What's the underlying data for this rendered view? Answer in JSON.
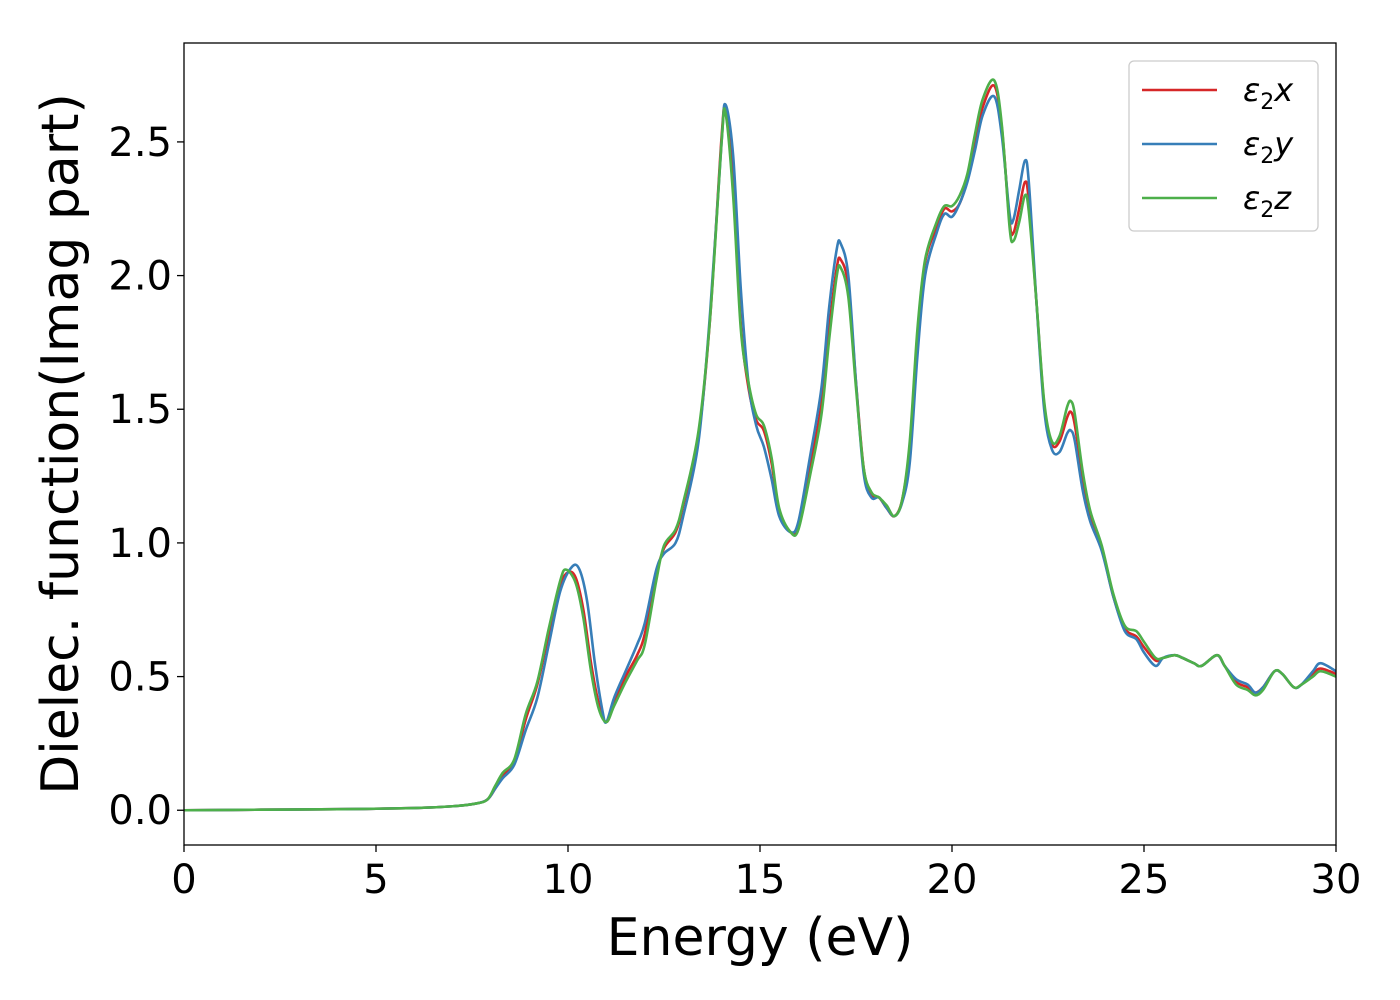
{
  "chart_data": {
    "type": "line",
    "xlabel": "Energy (eV)",
    "ylabel": "Dielec. function(Imag part)",
    "xlim": [
      0,
      30
    ],
    "ylim": [
      -0.13,
      2.87
    ],
    "xticks": [
      "0",
      "5",
      "10",
      "15",
      "20",
      "25",
      "30"
    ],
    "yticks": [
      "0.0",
      "0.5",
      "1.0",
      "1.5",
      "2.0",
      "2.5"
    ],
    "grid": false,
    "legend_position": "top-right",
    "series": [
      {
        "name": "ε2x",
        "legend": {
          "base": "ε",
          "sub": "2",
          "tail": "x"
        },
        "color": "#d62728",
        "points": [
          [
            0,
            0
          ],
          [
            2,
            0.002
          ],
          [
            4,
            0.004
          ],
          [
            6,
            0.008
          ],
          [
            7,
            0.015
          ],
          [
            7.6,
            0.025
          ],
          [
            7.9,
            0.04
          ],
          [
            8.1,
            0.08
          ],
          [
            8.3,
            0.13
          ],
          [
            8.6,
            0.18
          ],
          [
            8.9,
            0.34
          ],
          [
            9.2,
            0.47
          ],
          [
            9.5,
            0.66
          ],
          [
            9.8,
            0.84
          ],
          [
            10.0,
            0.89
          ],
          [
            10.2,
            0.87
          ],
          [
            10.4,
            0.75
          ],
          [
            10.6,
            0.55
          ],
          [
            10.8,
            0.4
          ],
          [
            11.0,
            0.33
          ],
          [
            11.2,
            0.4
          ],
          [
            11.5,
            0.5
          ],
          [
            11.8,
            0.58
          ],
          [
            12.0,
            0.66
          ],
          [
            12.3,
            0.88
          ],
          [
            12.5,
            0.98
          ],
          [
            12.8,
            1.04
          ],
          [
            13.0,
            1.14
          ],
          [
            13.4,
            1.4
          ],
          [
            13.7,
            1.84
          ],
          [
            14.0,
            2.52
          ],
          [
            14.1,
            2.61
          ],
          [
            14.3,
            2.35
          ],
          [
            14.5,
            1.82
          ],
          [
            14.7,
            1.58
          ],
          [
            14.9,
            1.46
          ],
          [
            15.1,
            1.42
          ],
          [
            15.3,
            1.3
          ],
          [
            15.5,
            1.12
          ],
          [
            15.8,
            1.04
          ],
          [
            16.0,
            1.06
          ],
          [
            16.3,
            1.28
          ],
          [
            16.6,
            1.52
          ],
          [
            16.8,
            1.8
          ],
          [
            17.0,
            2.03
          ],
          [
            17.1,
            2.06
          ],
          [
            17.3,
            1.96
          ],
          [
            17.5,
            1.6
          ],
          [
            17.7,
            1.28
          ],
          [
            17.9,
            1.18
          ],
          [
            18.1,
            1.17
          ],
          [
            18.3,
            1.13
          ],
          [
            18.5,
            1.1
          ],
          [
            18.7,
            1.16
          ],
          [
            18.9,
            1.36
          ],
          [
            19.1,
            1.78
          ],
          [
            19.3,
            2.05
          ],
          [
            19.6,
            2.18
          ],
          [
            19.8,
            2.25
          ],
          [
            20.0,
            2.24
          ],
          [
            20.2,
            2.27
          ],
          [
            20.4,
            2.36
          ],
          [
            20.6,
            2.5
          ],
          [
            20.8,
            2.63
          ],
          [
            21.1,
            2.71
          ],
          [
            21.3,
            2.55
          ],
          [
            21.5,
            2.2
          ],
          [
            21.6,
            2.16
          ],
          [
            21.75,
            2.25
          ],
          [
            21.9,
            2.35
          ],
          [
            22.0,
            2.28
          ],
          [
            22.2,
            1.9
          ],
          [
            22.4,
            1.52
          ],
          [
            22.6,
            1.37
          ],
          [
            22.8,
            1.38
          ],
          [
            23.0,
            1.47
          ],
          [
            23.1,
            1.49
          ],
          [
            23.2,
            1.44
          ],
          [
            23.4,
            1.25
          ],
          [
            23.6,
            1.1
          ],
          [
            23.9,
            0.98
          ],
          [
            24.2,
            0.8
          ],
          [
            24.5,
            0.68
          ],
          [
            24.8,
            0.65
          ],
          [
            25.0,
            0.61
          ],
          [
            25.3,
            0.56
          ],
          [
            25.5,
            0.57
          ],
          [
            25.8,
            0.58
          ],
          [
            26.0,
            0.57
          ],
          [
            26.3,
            0.55
          ],
          [
            26.5,
            0.54
          ],
          [
            26.9,
            0.58
          ],
          [
            27.1,
            0.54
          ],
          [
            27.4,
            0.48
          ],
          [
            27.7,
            0.46
          ],
          [
            27.9,
            0.44
          ],
          [
            28.1,
            0.46
          ],
          [
            28.4,
            0.52
          ],
          [
            28.6,
            0.51
          ],
          [
            28.9,
            0.46
          ],
          [
            29.1,
            0.47
          ],
          [
            29.4,
            0.51
          ],
          [
            29.6,
            0.53
          ],
          [
            30.0,
            0.51
          ]
        ]
      },
      {
        "name": "ε2y",
        "legend": {
          "base": "ε",
          "sub": "2",
          "tail": "y"
        },
        "color": "#377eb8",
        "points": [
          [
            0,
            0
          ],
          [
            2,
            0.002
          ],
          [
            4,
            0.004
          ],
          [
            6,
            0.008
          ],
          [
            7,
            0.015
          ],
          [
            7.6,
            0.025
          ],
          [
            7.9,
            0.04
          ],
          [
            8.1,
            0.08
          ],
          [
            8.3,
            0.12
          ],
          [
            8.6,
            0.17
          ],
          [
            8.9,
            0.3
          ],
          [
            9.2,
            0.42
          ],
          [
            9.5,
            0.62
          ],
          [
            9.8,
            0.82
          ],
          [
            10.1,
            0.91
          ],
          [
            10.3,
            0.9
          ],
          [
            10.5,
            0.78
          ],
          [
            10.7,
            0.55
          ],
          [
            10.9,
            0.37
          ],
          [
            11.0,
            0.33
          ],
          [
            11.2,
            0.42
          ],
          [
            11.5,
            0.52
          ],
          [
            11.8,
            0.62
          ],
          [
            12.0,
            0.7
          ],
          [
            12.3,
            0.9
          ],
          [
            12.5,
            0.96
          ],
          [
            12.8,
            1.0
          ],
          [
            13.0,
            1.1
          ],
          [
            13.4,
            1.38
          ],
          [
            13.7,
            1.86
          ],
          [
            14.0,
            2.5
          ],
          [
            14.1,
            2.64
          ],
          [
            14.3,
            2.45
          ],
          [
            14.5,
            1.95
          ],
          [
            14.7,
            1.6
          ],
          [
            14.9,
            1.44
          ],
          [
            15.1,
            1.36
          ],
          [
            15.3,
            1.24
          ],
          [
            15.5,
            1.1
          ],
          [
            15.8,
            1.04
          ],
          [
            16.0,
            1.08
          ],
          [
            16.3,
            1.32
          ],
          [
            16.6,
            1.58
          ],
          [
            16.8,
            1.88
          ],
          [
            17.0,
            2.1
          ],
          [
            17.1,
            2.12
          ],
          [
            17.3,
            2.0
          ],
          [
            17.5,
            1.6
          ],
          [
            17.7,
            1.26
          ],
          [
            17.9,
            1.17
          ],
          [
            18.1,
            1.17
          ],
          [
            18.3,
            1.13
          ],
          [
            18.5,
            1.1
          ],
          [
            18.7,
            1.15
          ],
          [
            18.9,
            1.3
          ],
          [
            19.1,
            1.7
          ],
          [
            19.3,
            2.0
          ],
          [
            19.6,
            2.16
          ],
          [
            19.8,
            2.23
          ],
          [
            20.0,
            2.22
          ],
          [
            20.2,
            2.27
          ],
          [
            20.4,
            2.35
          ],
          [
            20.6,
            2.47
          ],
          [
            20.8,
            2.6
          ],
          [
            21.1,
            2.67
          ],
          [
            21.3,
            2.52
          ],
          [
            21.5,
            2.23
          ],
          [
            21.6,
            2.21
          ],
          [
            21.75,
            2.32
          ],
          [
            21.9,
            2.43
          ],
          [
            22.0,
            2.35
          ],
          [
            22.2,
            1.9
          ],
          [
            22.4,
            1.5
          ],
          [
            22.6,
            1.35
          ],
          [
            22.8,
            1.34
          ],
          [
            23.0,
            1.41
          ],
          [
            23.1,
            1.42
          ],
          [
            23.2,
            1.38
          ],
          [
            23.4,
            1.2
          ],
          [
            23.6,
            1.08
          ],
          [
            23.9,
            0.97
          ],
          [
            24.2,
            0.8
          ],
          [
            24.5,
            0.67
          ],
          [
            24.8,
            0.64
          ],
          [
            25.0,
            0.59
          ],
          [
            25.3,
            0.54
          ],
          [
            25.5,
            0.57
          ],
          [
            25.8,
            0.58
          ],
          [
            26.0,
            0.57
          ],
          [
            26.3,
            0.55
          ],
          [
            26.5,
            0.54
          ],
          [
            26.9,
            0.58
          ],
          [
            27.1,
            0.54
          ],
          [
            27.4,
            0.49
          ],
          [
            27.7,
            0.47
          ],
          [
            27.9,
            0.44
          ],
          [
            28.1,
            0.46
          ],
          [
            28.4,
            0.52
          ],
          [
            28.6,
            0.51
          ],
          [
            28.9,
            0.46
          ],
          [
            29.1,
            0.47
          ],
          [
            29.4,
            0.52
          ],
          [
            29.6,
            0.55
          ],
          [
            30.0,
            0.52
          ]
        ]
      },
      {
        "name": "ε2z",
        "legend": {
          "base": "ε",
          "sub": "2",
          "tail": "z"
        },
        "color": "#4daf4a",
        "points": [
          [
            0,
            0
          ],
          [
            2,
            0.002
          ],
          [
            4,
            0.004
          ],
          [
            6,
            0.008
          ],
          [
            7,
            0.015
          ],
          [
            7.6,
            0.025
          ],
          [
            7.9,
            0.04
          ],
          [
            8.1,
            0.09
          ],
          [
            8.3,
            0.14
          ],
          [
            8.6,
            0.19
          ],
          [
            8.9,
            0.36
          ],
          [
            9.2,
            0.48
          ],
          [
            9.5,
            0.68
          ],
          [
            9.8,
            0.86
          ],
          [
            9.95,
            0.9
          ],
          [
            10.2,
            0.85
          ],
          [
            10.4,
            0.72
          ],
          [
            10.6,
            0.52
          ],
          [
            10.8,
            0.38
          ],
          [
            11.0,
            0.33
          ],
          [
            11.2,
            0.39
          ],
          [
            11.5,
            0.48
          ],
          [
            11.8,
            0.56
          ],
          [
            12.0,
            0.62
          ],
          [
            12.3,
            0.86
          ],
          [
            12.5,
            0.99
          ],
          [
            12.8,
            1.05
          ],
          [
            13.0,
            1.15
          ],
          [
            13.4,
            1.42
          ],
          [
            13.7,
            1.84
          ],
          [
            14.0,
            2.5
          ],
          [
            14.1,
            2.61
          ],
          [
            14.3,
            2.3
          ],
          [
            14.5,
            1.8
          ],
          [
            14.7,
            1.6
          ],
          [
            14.9,
            1.48
          ],
          [
            15.1,
            1.44
          ],
          [
            15.3,
            1.32
          ],
          [
            15.5,
            1.13
          ],
          [
            15.8,
            1.04
          ],
          [
            16.0,
            1.05
          ],
          [
            16.3,
            1.25
          ],
          [
            16.6,
            1.48
          ],
          [
            16.8,
            1.76
          ],
          [
            17.0,
            2.0
          ],
          [
            17.1,
            2.03
          ],
          [
            17.3,
            1.92
          ],
          [
            17.5,
            1.58
          ],
          [
            17.7,
            1.28
          ],
          [
            17.9,
            1.19
          ],
          [
            18.1,
            1.17
          ],
          [
            18.3,
            1.14
          ],
          [
            18.5,
            1.1
          ],
          [
            18.7,
            1.16
          ],
          [
            18.9,
            1.38
          ],
          [
            19.1,
            1.8
          ],
          [
            19.3,
            2.06
          ],
          [
            19.6,
            2.2
          ],
          [
            19.8,
            2.26
          ],
          [
            20.0,
            2.26
          ],
          [
            20.2,
            2.3
          ],
          [
            20.4,
            2.38
          ],
          [
            20.6,
            2.53
          ],
          [
            20.8,
            2.66
          ],
          [
            21.1,
            2.73
          ],
          [
            21.3,
            2.56
          ],
          [
            21.5,
            2.18
          ],
          [
            21.6,
            2.13
          ],
          [
            21.75,
            2.2
          ],
          [
            21.9,
            2.3
          ],
          [
            22.0,
            2.24
          ],
          [
            22.2,
            1.9
          ],
          [
            22.4,
            1.53
          ],
          [
            22.6,
            1.38
          ],
          [
            22.8,
            1.4
          ],
          [
            23.0,
            1.51
          ],
          [
            23.1,
            1.53
          ],
          [
            23.2,
            1.48
          ],
          [
            23.4,
            1.27
          ],
          [
            23.6,
            1.12
          ],
          [
            23.9,
            0.99
          ],
          [
            24.2,
            0.81
          ],
          [
            24.5,
            0.69
          ],
          [
            24.8,
            0.67
          ],
          [
            25.0,
            0.63
          ],
          [
            25.3,
            0.57
          ],
          [
            25.5,
            0.57
          ],
          [
            25.8,
            0.58
          ],
          [
            26.0,
            0.57
          ],
          [
            26.3,
            0.55
          ],
          [
            26.5,
            0.54
          ],
          [
            26.9,
            0.58
          ],
          [
            27.1,
            0.54
          ],
          [
            27.4,
            0.47
          ],
          [
            27.7,
            0.45
          ],
          [
            27.9,
            0.43
          ],
          [
            28.1,
            0.45
          ],
          [
            28.4,
            0.52
          ],
          [
            28.6,
            0.51
          ],
          [
            28.9,
            0.46
          ],
          [
            29.1,
            0.47
          ],
          [
            29.4,
            0.5
          ],
          [
            29.6,
            0.52
          ],
          [
            30.0,
            0.5
          ]
        ]
      }
    ]
  }
}
